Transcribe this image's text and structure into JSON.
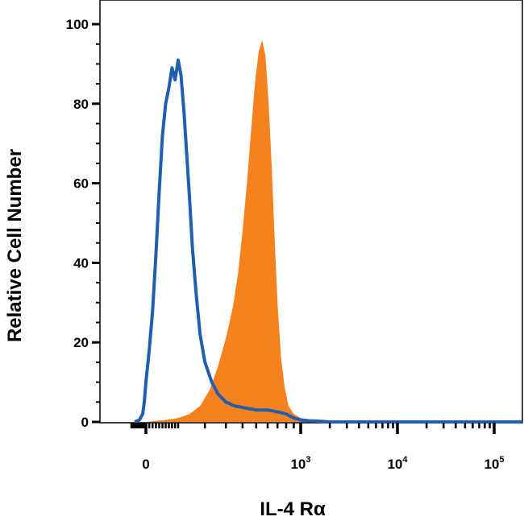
{
  "chart_data": {
    "type": "area",
    "title": "",
    "xlabel": "IL-4 Rα",
    "ylabel": "Relative Cell Number",
    "xscale": "biexponential",
    "ylim": [
      0,
      100
    ],
    "yticks": [
      0,
      20,
      40,
      60,
      80,
      100
    ],
    "xticks": [
      {
        "value": 0,
        "label": "0",
        "exp": ""
      },
      {
        "value": 1000,
        "label": "10",
        "exp": "3"
      },
      {
        "value": 10000,
        "label": "10",
        "exp": "4"
      },
      {
        "value": 100000,
        "label": "10",
        "exp": "5"
      }
    ],
    "grid": false,
    "series": [
      {
        "style": "filled",
        "color": "#F5821F",
        "x": [
          -70,
          0,
          60,
          100,
          140,
          180,
          220,
          260,
          300,
          340,
          370,
          400,
          430,
          460,
          490,
          520,
          550,
          580,
          610,
          640,
          670,
          700,
          740,
          780,
          830,
          900,
          1000,
          1150,
          1400,
          2000,
          5000,
          100000,
          300000
        ],
        "y": [
          0,
          0,
          0.5,
          1,
          2,
          4,
          8,
          14,
          21,
          29,
          37,
          48,
          60,
          73,
          85,
          93,
          96,
          92,
          80,
          64,
          46,
          30,
          16,
          9,
          4,
          2,
          1,
          0.5,
          0.2,
          0,
          0,
          0,
          0
        ]
      },
      {
        "style": "line",
        "color": "#1F5FAE",
        "x": [
          -70,
          -40,
          -20,
          -10,
          0,
          10,
          20,
          30,
          40,
          50,
          60,
          70,
          80,
          90,
          100,
          110,
          120,
          130,
          140,
          150,
          165,
          180,
          200,
          230,
          260,
          300,
          350,
          420,
          500,
          600,
          700,
          800,
          900,
          1000,
          1200,
          1500,
          2000,
          5000,
          100000,
          300000
        ],
        "y": [
          0,
          0.5,
          2,
          5,
          10,
          18,
          28,
          42,
          58,
          72,
          80,
          84,
          89,
          86,
          91,
          87,
          78,
          67,
          56,
          44,
          32,
          22,
          15,
          10,
          7,
          5,
          4,
          3.5,
          3,
          3,
          2.5,
          2,
          1,
          0.5,
          0.3,
          0.2,
          0,
          0,
          0,
          0
        ]
      }
    ]
  }
}
